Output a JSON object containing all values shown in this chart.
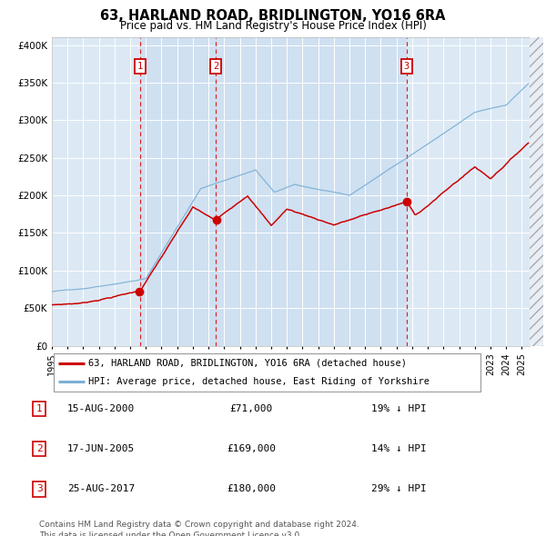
{
  "title": "63, HARLAND ROAD, BRIDLINGTON, YO16 6RA",
  "subtitle": "Price paid vs. HM Land Registry's House Price Index (HPI)",
  "background_color": "#ffffff",
  "plot_bg_color": "#dce9f5",
  "grid_color": "#ffffff",
  "hpi_line_color": "#7bafd4",
  "price_line_color": "#cc0000",
  "purchase_marker_color": "#cc0000",
  "dashed_line_color": "#dd0000",
  "ylim": [
    0,
    410000
  ],
  "yticks": [
    0,
    50000,
    100000,
    150000,
    200000,
    250000,
    300000,
    350000,
    400000
  ],
  "ytick_labels": [
    "£0",
    "£50K",
    "£100K",
    "£150K",
    "£200K",
    "£250K",
    "£300K",
    "£350K",
    "£400K"
  ],
  "xstart": 1995.0,
  "xend": 2025.5,
  "purchases": [
    {
      "id": 1,
      "date": "15-AUG-2000",
      "year": 2000.62,
      "price": 71000,
      "hpi_pct": "19% ↓ HPI"
    },
    {
      "id": 2,
      "date": "17-JUN-2005",
      "year": 2005.46,
      "price": 169000,
      "hpi_pct": "14% ↓ HPI"
    },
    {
      "id": 3,
      "date": "25-AUG-2017",
      "year": 2017.65,
      "price": 180000,
      "hpi_pct": "29% ↓ HPI"
    }
  ],
  "legend_house_label": "63, HARLAND ROAD, BRIDLINGTON, YO16 6RA (detached house)",
  "legend_hpi_label": "HPI: Average price, detached house, East Riding of Yorkshire",
  "footer": "Contains HM Land Registry data © Crown copyright and database right 2024.\nThis data is licensed under the Open Government Licence v3.0."
}
